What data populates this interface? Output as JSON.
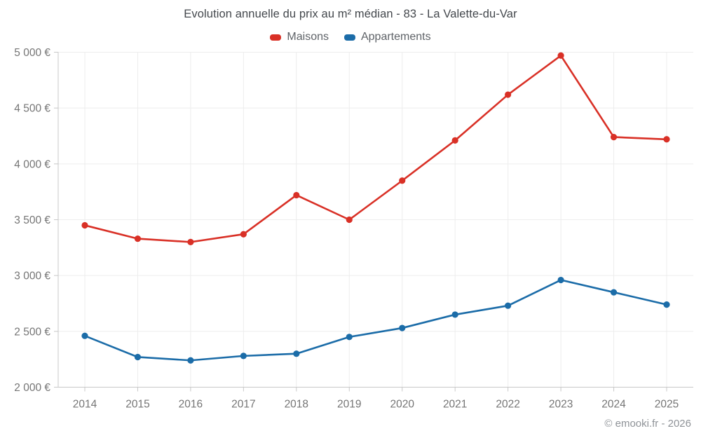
{
  "title": "Evolution annuelle du prix au m² médian - 83 - La Valette-du-Var",
  "footer": "© emooki.fr - 2026",
  "colors": {
    "maisons": "#d93026",
    "appartements": "#1b6ca8",
    "grid": "#ededed",
    "axis": "#c8c8c8",
    "tick_label": "#757575",
    "title_text": "#43474c",
    "legend_text": "#5f6368",
    "footer_text": "#8f9398"
  },
  "chart_data": {
    "type": "line",
    "title": "Evolution annuelle du prix au m² médian - 83 - La Valette-du-Var",
    "categories": [
      "2014",
      "2015",
      "2016",
      "2017",
      "2018",
      "2019",
      "2020",
      "2021",
      "2022",
      "2023",
      "2024",
      "2025"
    ],
    "series": [
      {
        "name": "Maisons",
        "color": "#d93026",
        "values": [
          3450,
          3330,
          3300,
          3370,
          3720,
          3500,
          3850,
          4210,
          4620,
          4970,
          4240,
          4220
        ]
      },
      {
        "name": "Appartements",
        "color": "#1b6ca8",
        "values": [
          2460,
          2270,
          2240,
          2280,
          2300,
          2450,
          2530,
          2650,
          2730,
          2960,
          2850,
          2740
        ]
      }
    ],
    "xlabel": "",
    "ylabel": "",
    "ylim": [
      2000,
      5000
    ],
    "ytick_step": 500,
    "ytick_labels": [
      "2 000 €",
      "2 500 €",
      "3 000 €",
      "3 500 €",
      "4 000 €",
      "4 500 €",
      "5 000 €"
    ],
    "grid": true,
    "legend_position": "top",
    "marker": "circle"
  }
}
